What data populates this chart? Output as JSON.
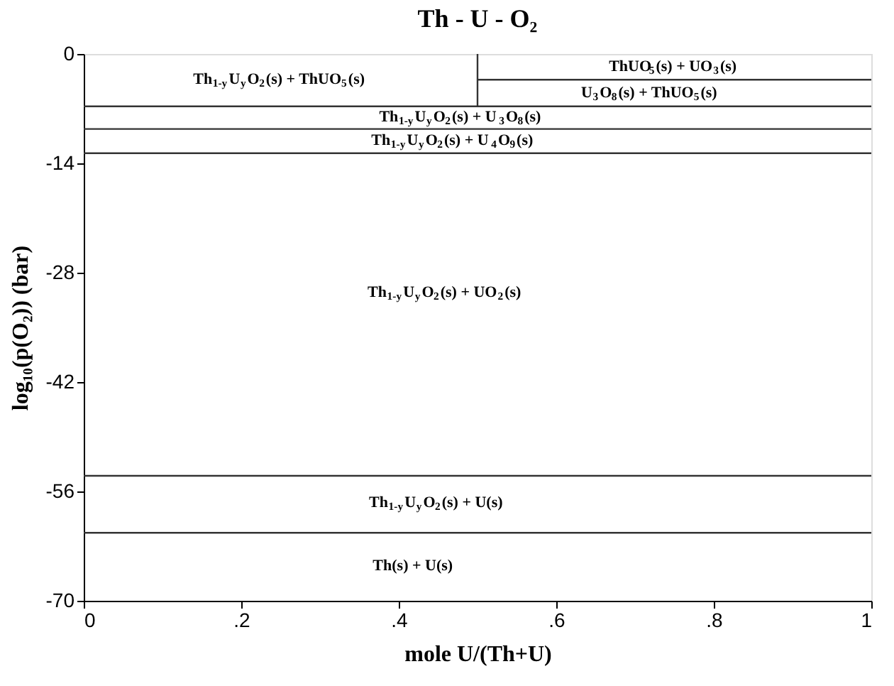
{
  "chart_data": {
    "type": "line",
    "title": "Th - U - O₂",
    "xlabel": "mole U/(Th+U)",
    "ylabel": "log₁₀(p(O₂)) (bar)",
    "xlim": [
      0,
      1
    ],
    "ylim": [
      -70,
      0
    ],
    "xticks": [
      0,
      {
        "value": 0.2,
        "label": ".2"
      },
      {
        "value": 0.4,
        "label": ".4"
      },
      {
        "value": 0.6,
        "label": ".6"
      },
      {
        "value": 0.8,
        "label": ".8"
      },
      1
    ],
    "yticks": [
      -70,
      -56,
      -42,
      -28,
      -14,
      0
    ],
    "grid": false,
    "marker": "none",
    "line_style": "solid",
    "series": [
      {
        "color": "#333333",
        "x": [
          0.5,
          0.5
        ],
        "values": [
          0,
          -6.7
        ]
      },
      {
        "color": "#333333",
        "x": [
          0.5,
          1
        ],
        "values": [
          -3.3,
          -3.3
        ]
      },
      {
        "color": "#333333",
        "x": [
          0,
          1
        ],
        "values": [
          -6.7,
          -6.7
        ]
      },
      {
        "color": "#333333",
        "x": [
          0,
          1
        ],
        "values": [
          -9.6,
          -9.6
        ]
      },
      {
        "color": "#333333",
        "x": [
          0,
          1
        ],
        "values": [
          -12.7,
          -12.7
        ]
      },
      {
        "color": "#333333",
        "x": [
          0,
          1
        ],
        "values": [
          -54,
          -54
        ]
      },
      {
        "color": "#333333",
        "x": [
          0,
          1
        ],
        "values": [
          -61.3,
          -61.3
        ]
      }
    ],
    "annotations": [
      "Th$_{1-y}$U$_{y}$O$_{2}$(s) + ThUO$_{5}$(s)",
      "ThUO$_{5}$(s) + UO$_{3}$(s)",
      "U$_{3}$O$_{8}$(s) + ThUO$_{5}$(s)",
      "Th$_{1-y}$U$_{y}$O$_{2}$(s) + U$_{3}$O$_{8}$(s)",
      "Th$_{1-y}$U$_{y}$O$_{2}$(s) + U$_{4}$O$_{9}$(s)",
      "Th$_{1-y}$U$_{y}$O$_{2}$(s) + UO$_{2}$(s)",
      "Th$_{1-y}$U$_{y}$O$_{2}$(s) + U(s)",
      "Th(s) + U(s)"
    ]
  }
}
